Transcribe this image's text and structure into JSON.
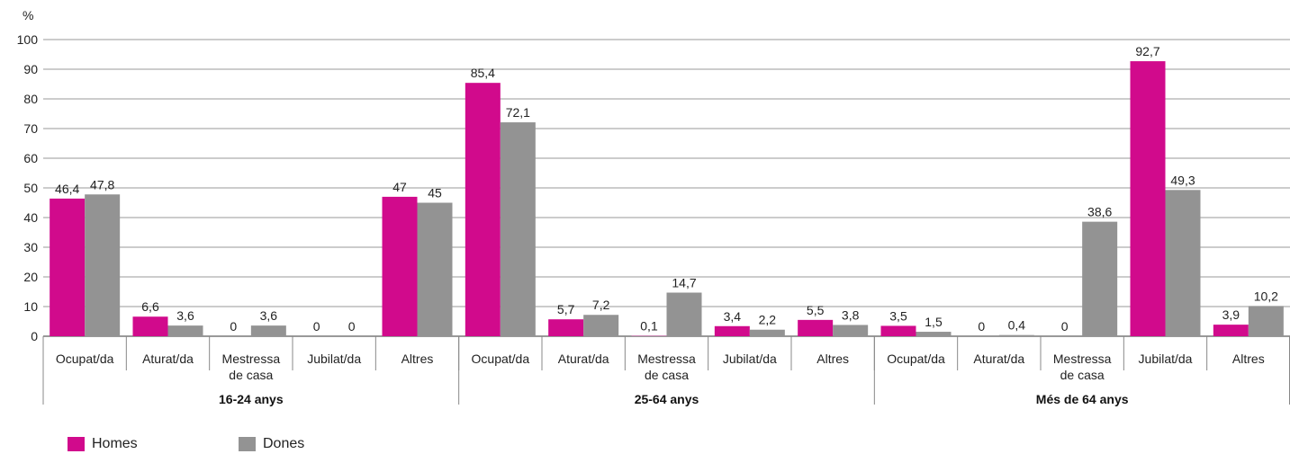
{
  "chart_data": {
    "type": "bar",
    "unit_label": "%",
    "ylim": [
      0,
      100
    ],
    "yticks": [
      0,
      10,
      20,
      30,
      40,
      50,
      60,
      70,
      80,
      90,
      100
    ],
    "grid": true,
    "legend_position": "bottom-left",
    "colors": {
      "Homes": "#d10a8c",
      "Dones": "#939393"
    },
    "groups": [
      {
        "name": "16-24 anys",
        "categories": [
          {
            "label": [
              "Ocupat/da"
            ],
            "values": [
              46.4,
              47.8
            ],
            "labels": [
              "46,4",
              "47,8"
            ]
          },
          {
            "label": [
              "Aturat/da"
            ],
            "values": [
              6.6,
              3.6
            ],
            "labels": [
              "6,6",
              "3,6"
            ]
          },
          {
            "label": [
              "Mestressa",
              "de casa"
            ],
            "values": [
              0,
              3.6
            ],
            "labels": [
              "0",
              "3,6"
            ]
          },
          {
            "label": [
              "Jubilat/da"
            ],
            "values": [
              0,
              0
            ],
            "labels": [
              "0",
              "0"
            ]
          },
          {
            "label": [
              "Altres"
            ],
            "values": [
              47,
              45
            ],
            "labels": [
              "47",
              "45"
            ]
          }
        ]
      },
      {
        "name": "25-64 anys",
        "categories": [
          {
            "label": [
              "Ocupat/da"
            ],
            "values": [
              85.4,
              72.1
            ],
            "labels": [
              "85,4",
              "72,1"
            ]
          },
          {
            "label": [
              "Aturat/da"
            ],
            "values": [
              5.7,
              7.2
            ],
            "labels": [
              "5,7",
              "7,2"
            ]
          },
          {
            "label": [
              "Mestressa",
              "de casa"
            ],
            "values": [
              0.1,
              14.7
            ],
            "labels": [
              "0,1",
              "14,7"
            ]
          },
          {
            "label": [
              "Jubilat/da"
            ],
            "values": [
              3.4,
              2.2
            ],
            "labels": [
              "3,4",
              "2,2"
            ]
          },
          {
            "label": [
              "Altres"
            ],
            "values": [
              5.5,
              3.8
            ],
            "labels": [
              "5,5",
              "3,8"
            ]
          }
        ]
      },
      {
        "name": "Més de 64 anys",
        "categories": [
          {
            "label": [
              "Ocupat/da"
            ],
            "values": [
              3.5,
              1.5
            ],
            "labels": [
              "3,5",
              "1,5"
            ]
          },
          {
            "label": [
              "Aturat/da"
            ],
            "values": [
              0,
              0.4
            ],
            "labels": [
              "0",
              "0,4"
            ]
          },
          {
            "label": [
              "Mestressa",
              "de casa"
            ],
            "values": [
              0,
              38.6
            ],
            "labels": [
              "0",
              "38,6"
            ]
          },
          {
            "label": [
              "Jubilat/da"
            ],
            "values": [
              92.7,
              49.3
            ],
            "labels": [
              "92,7",
              "49,3"
            ]
          },
          {
            "label": [
              "Altres"
            ],
            "values": [
              3.9,
              10.2
            ],
            "labels": [
              "3,9",
              "10,2"
            ]
          }
        ]
      }
    ],
    "series": [
      {
        "name": "Homes"
      },
      {
        "name": "Dones"
      }
    ]
  },
  "legend": {
    "items": [
      {
        "label": "Homes",
        "color": "#d10a8c"
      },
      {
        "label": "Dones",
        "color": "#939393"
      }
    ]
  }
}
